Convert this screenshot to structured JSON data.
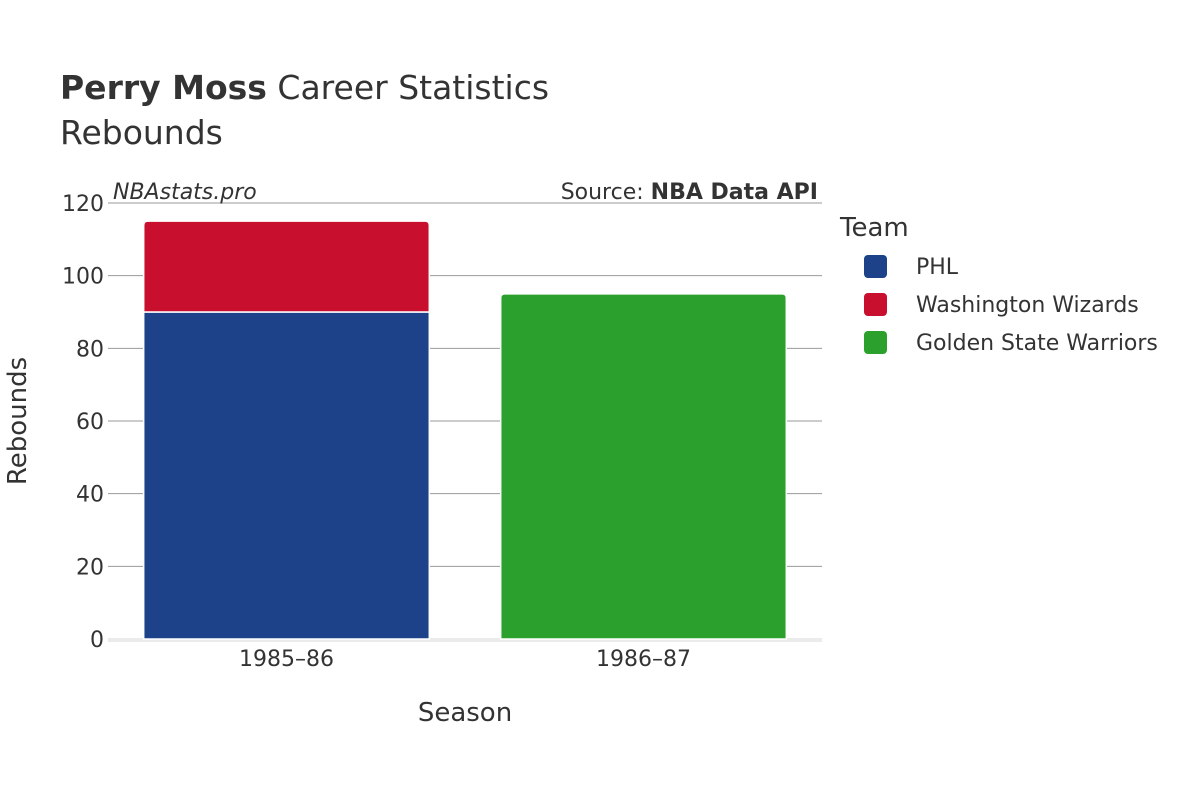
{
  "title": {
    "bold": "Perry Moss",
    "rest": "Career Statistics"
  },
  "subtitle": "Rebounds",
  "watermark": "NBAstats.pro",
  "source": {
    "prefix": "Source: ",
    "name": "NBA Data API"
  },
  "chart_data": {
    "type": "bar",
    "stacked": true,
    "categories": [
      "1985–86",
      "1986–87"
    ],
    "series": [
      {
        "name": "PHL",
        "color": "#1d428a",
        "values": [
          90,
          0
        ]
      },
      {
        "name": "Washington Wizards",
        "color": "#c8102e",
        "values": [
          25,
          0
        ]
      },
      {
        "name": "Golden State Warriors",
        "color": "#2ca02c",
        "values": [
          0,
          95
        ]
      }
    ],
    "xlabel": "Season",
    "ylabel": "Rebounds",
    "ylim": [
      0,
      120
    ],
    "yticks": [
      0,
      20,
      40,
      60,
      80,
      100,
      120
    ],
    "grid": true,
    "legend": {
      "title": "Team",
      "placement": "right"
    }
  }
}
